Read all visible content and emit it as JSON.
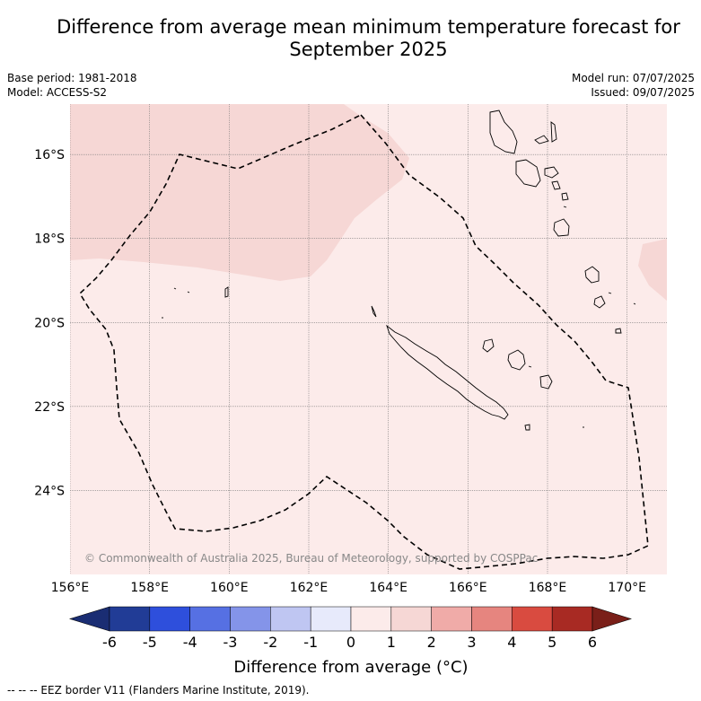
{
  "title": {
    "line1": "Difference from average mean minimum temperature forecast for",
    "line2": "September 2025"
  },
  "meta": {
    "base_period": "Base period: 1981-2018",
    "model": "Model: ACCESS-S2",
    "model_run": "Model run: 07/07/2025",
    "issued": "Issued: 09/07/2025"
  },
  "map": {
    "lon_range": [
      156,
      171
    ],
    "lat_range": [
      -26.0,
      -14.8
    ],
    "lon_ticks": [
      156,
      158,
      160,
      162,
      164,
      166,
      168,
      170
    ],
    "lon_labels": [
      "156°E",
      "158°E",
      "160°E",
      "162°E",
      "164°E",
      "166°E",
      "168°E",
      "170°E"
    ],
    "lat_ticks": [
      -16,
      -18,
      -20,
      -22,
      -24
    ],
    "lat_labels": [
      "16°S",
      "18°S",
      "20°S",
      "22°S",
      "24°S"
    ],
    "anomaly_fill": {
      "0_to_1": "#fcebea",
      "1_to_2": "#f6d7d5"
    },
    "eez_border_style": "dashed",
    "copyright": "© Commonwealth of Australia 2025, Bureau of Meteorology, supported by COSPPac"
  },
  "colorbar": {
    "title": "Difference from average (°C)",
    "labels": [
      "-6",
      "-5",
      "-4",
      "-3",
      "-2",
      "-1",
      "0",
      "1",
      "2",
      "3",
      "4",
      "5",
      "6"
    ],
    "colors": [
      "#213c96",
      "#2e4fdc",
      "#5670e3",
      "#8494e9",
      "#bfc6f2",
      "#e7eafb",
      "#fcebea",
      "#f6d7d5",
      "#f0aba8",
      "#e6857f",
      "#d94b40",
      "#a82a23"
    ],
    "under_color": "#1a2d73",
    "over_color": "#7a1f19"
  },
  "footer": "--  --  -- EEZ border V11 (Flanders Marine Institute, 2019)."
}
